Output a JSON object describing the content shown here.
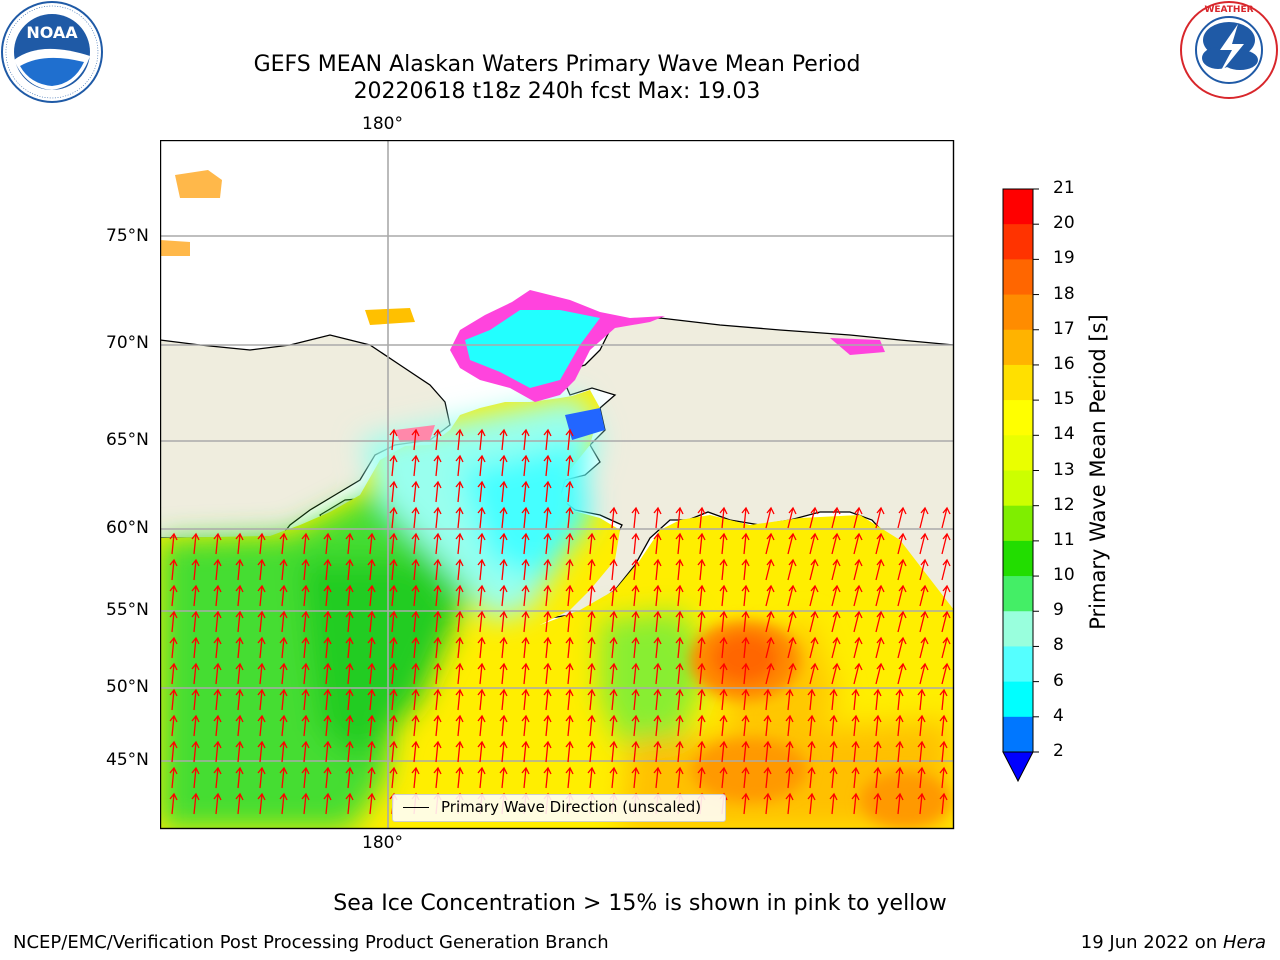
{
  "title": {
    "line1": "GEFS MEAN Alaskan Waters Primary Wave Mean Period",
    "line2": "20220618 t18z 240h fcst   Max: 19.03"
  },
  "logos": {
    "left": {
      "name": "noaa-logo",
      "text": "NOAA",
      "ring_text": "NATIONAL OCEANIC AND ATMOSPHERIC ADMINISTRATION · U.S. DEPARTMENT OF COMMERCE",
      "color": "#1f5aa6"
    },
    "right": {
      "name": "nws-logo",
      "ring_text": "NATIONAL WEATHER SERVICE",
      "color": "#d8262b"
    }
  },
  "map": {
    "lon_labels_top": [
      "180°"
    ],
    "lon_labels_bottom": [
      "180°"
    ],
    "lat_labels": [
      {
        "label": "75°N",
        "value": 75
      },
      {
        "label": "70°N",
        "value": 70
      },
      {
        "label": "65°N",
        "value": 65
      },
      {
        "label": "60°N",
        "value": 60
      },
      {
        "label": "55°N",
        "value": 55
      },
      {
        "label": "50°N",
        "value": 50
      },
      {
        "label": "45°N",
        "value": 45
      }
    ],
    "land_color": "#efedde",
    "arrow_color": "#ff0000",
    "legend_label": "Primary Wave Direction (unscaled)"
  },
  "colorbar": {
    "title": "Primary Wave Mean Period [s]",
    "ticks": [
      "21",
      "20",
      "19",
      "18",
      "17",
      "16",
      "15",
      "14",
      "13",
      "12",
      "11",
      "10",
      "9",
      "8",
      "6",
      "4",
      "2"
    ],
    "colors": [
      "#ff0000",
      "#ff3300",
      "#ff6600",
      "#ff8c00",
      "#ffb300",
      "#ffe000",
      "#ffff00",
      "#eaff00",
      "#ccff00",
      "#7fee00",
      "#22dd00",
      "#44ee66",
      "#99ffdd",
      "#55ffff",
      "#00ffff",
      "#0077ff"
    ],
    "extend_color": "#0000ff"
  },
  "note": "Sea Ice Concentration > 15% is shown in pink to yellow",
  "footer": {
    "left": "NCEP/EMC/Verification Post Processing Product Generation Branch",
    "right_prefix": "19 Jun 2022 on ",
    "right_host": "Hera"
  }
}
